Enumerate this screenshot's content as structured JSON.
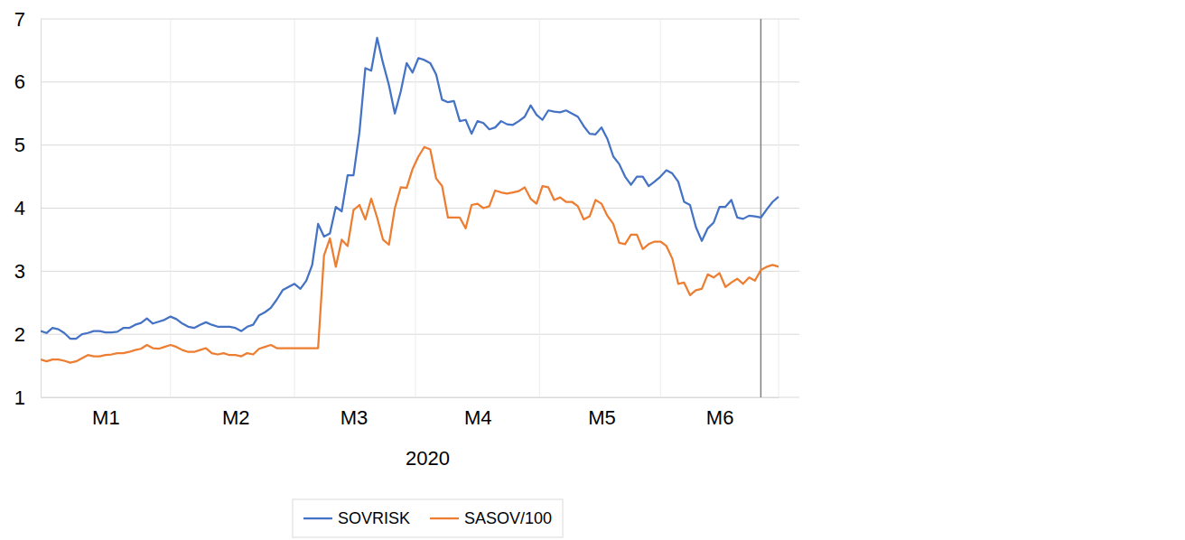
{
  "chart_data": {
    "type": "line",
    "x_label": "2020",
    "categories": [
      null,
      null,
      null,
      null,
      null,
      null,
      null,
      null,
      null,
      null,
      null,
      "M1",
      null,
      null,
      null,
      null,
      null,
      null,
      null,
      null,
      null,
      null,
      null,
      null,
      null,
      null,
      null,
      null,
      null,
      null,
      null,
      null,
      null,
      "M2",
      null,
      null,
      null,
      null,
      null,
      null,
      null,
      null,
      null,
      null,
      null,
      null,
      null,
      null,
      null,
      null,
      null,
      null,
      null,
      "M3",
      null,
      null,
      null,
      null,
      null,
      null,
      null,
      null,
      null,
      null,
      null,
      null,
      null,
      null,
      null,
      null,
      null,
      null,
      null,
      null,
      "M4",
      null,
      null,
      null,
      null,
      null,
      null,
      null,
      null,
      null,
      null,
      null,
      null,
      null,
      null,
      null,
      null,
      null,
      null,
      null,
      null,
      "M5",
      null,
      null,
      null,
      null,
      null,
      null,
      null,
      null,
      null,
      null,
      null,
      null,
      null,
      null,
      null,
      null,
      null,
      null,
      null,
      "M6",
      null,
      null,
      null,
      null,
      null,
      null,
      null,
      null,
      null,
      null
    ],
    "series": [
      {
        "name": "SOVRISK",
        "color": "#4472C4",
        "values": [
          2.05,
          2.02,
          2.1,
          2.08,
          2.02,
          1.93,
          1.93,
          2.0,
          2.02,
          2.05,
          2.05,
          2.03,
          2.03,
          2.04,
          2.1,
          2.1,
          2.15,
          2.18,
          2.25,
          2.17,
          2.2,
          2.23,
          2.28,
          2.24,
          2.17,
          2.12,
          2.1,
          2.15,
          2.19,
          2.15,
          2.12,
          2.12,
          2.12,
          2.1,
          2.05,
          2.12,
          2.15,
          2.3,
          2.35,
          2.42,
          2.55,
          2.7,
          2.75,
          2.8,
          2.72,
          2.85,
          3.1,
          3.75,
          3.55,
          3.6,
          4.02,
          3.95,
          4.52,
          4.52,
          5.2,
          6.22,
          6.18,
          6.7,
          6.3,
          5.95,
          5.5,
          5.85,
          6.3,
          6.15,
          6.38,
          6.35,
          6.3,
          6.12,
          5.72,
          5.68,
          5.7,
          5.38,
          5.4,
          5.18,
          5.38,
          5.35,
          5.25,
          5.28,
          5.38,
          5.33,
          5.32,
          5.38,
          5.45,
          5.63,
          5.48,
          5.4,
          5.55,
          5.53,
          5.52,
          5.55,
          5.5,
          5.45,
          5.3,
          5.18,
          5.17,
          5.28,
          5.1,
          4.82,
          4.7,
          4.5,
          4.37,
          4.5,
          4.5,
          4.35,
          4.42,
          4.5,
          4.6,
          4.55,
          4.42,
          4.1,
          4.05,
          3.7,
          3.48,
          3.68,
          3.77,
          4.02,
          4.02,
          4.13,
          3.85,
          3.83,
          3.88,
          3.87,
          3.85,
          3.98,
          4.1,
          4.18
        ]
      },
      {
        "name": "SASOV/100",
        "color": "#ED7D31",
        "values": [
          1.6,
          1.57,
          1.6,
          1.6,
          1.58,
          1.55,
          1.57,
          1.62,
          1.67,
          1.65,
          1.65,
          1.67,
          1.68,
          1.7,
          1.7,
          1.72,
          1.75,
          1.77,
          1.83,
          1.78,
          1.77,
          1.8,
          1.83,
          1.8,
          1.75,
          1.72,
          1.72,
          1.75,
          1.78,
          1.7,
          1.68,
          1.7,
          1.67,
          1.67,
          1.65,
          1.7,
          1.68,
          1.77,
          1.8,
          1.83,
          1.78,
          1.78,
          1.78,
          1.78,
          1.78,
          1.78,
          1.78,
          1.78,
          3.25,
          3.52,
          3.07,
          3.5,
          3.4,
          3.97,
          4.05,
          3.82,
          4.15,
          3.85,
          3.5,
          3.42,
          4.0,
          4.33,
          4.32,
          4.62,
          4.82,
          4.97,
          4.93,
          4.47,
          4.35,
          3.85,
          3.85,
          3.85,
          3.68,
          4.05,
          4.07,
          4.0,
          4.03,
          4.28,
          4.25,
          4.23,
          4.25,
          4.27,
          4.33,
          4.15,
          4.07,
          4.35,
          4.33,
          4.13,
          4.17,
          4.1,
          4.1,
          4.03,
          3.82,
          3.87,
          4.13,
          4.07,
          3.88,
          3.75,
          3.45,
          3.43,
          3.58,
          3.58,
          3.35,
          3.43,
          3.47,
          3.47,
          3.4,
          3.2,
          2.8,
          2.82,
          2.62,
          2.7,
          2.72,
          2.95,
          2.9,
          2.97,
          2.75,
          2.82,
          2.88,
          2.8,
          2.9,
          2.85,
          3.02,
          3.07,
          3.1,
          3.07
        ]
      }
    ],
    "ylim": [
      1,
      7
    ],
    "yticks": [
      1,
      2,
      3,
      4,
      5,
      6,
      7
    ],
    "grid": true,
    "legend": "bottom",
    "vlines": [
      122
    ]
  }
}
